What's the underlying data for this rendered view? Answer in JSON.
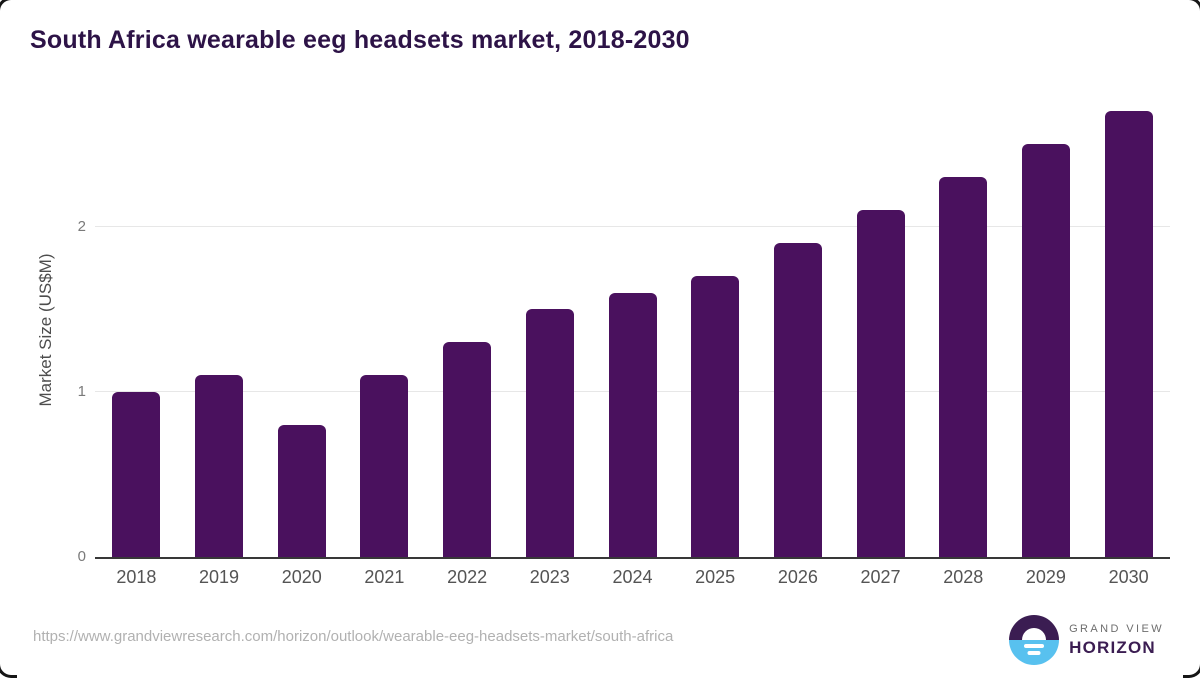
{
  "page": {
    "title": "South Africa wearable eeg headsets market, 2018-2030",
    "source_url": "https://www.grandviewresearch.com/horizon/outlook/wearable-eeg-headsets-market/south-africa"
  },
  "logo": {
    "icon": "horizon-sunrise-circle-icon",
    "line1": "GRAND VIEW",
    "line2": "HORIZON"
  },
  "colors": {
    "bar": "#4a115e",
    "title": "#2d1347",
    "grid": "#e7e7e7",
    "axis": "#383838",
    "tick": "#7a7a7a",
    "xlabel": "#545454",
    "url": "#b1b1b1",
    "logo_dark": "#3b1d52",
    "logo_blue": "#58c1ef",
    "logo_gray": "#6e6e6e"
  },
  "chart_data": {
    "type": "bar",
    "title": "South Africa wearable eeg headsets market, 2018-2030",
    "categories": [
      "2018",
      "2019",
      "2020",
      "2021",
      "2022",
      "2023",
      "2024",
      "2025",
      "2026",
      "2027",
      "2028",
      "2029",
      "2030"
    ],
    "values": [
      1.0,
      1.1,
      0.8,
      1.1,
      1.3,
      1.5,
      1.6,
      1.7,
      1.9,
      2.1,
      2.3,
      2.5,
      2.7
    ],
    "xlabel": "",
    "ylabel": "Market Size (US$M)",
    "ylim": [
      0,
      2.83
    ],
    "yticks": [
      0,
      1,
      2
    ],
    "grid": "horizontal-only",
    "legend": "none"
  }
}
